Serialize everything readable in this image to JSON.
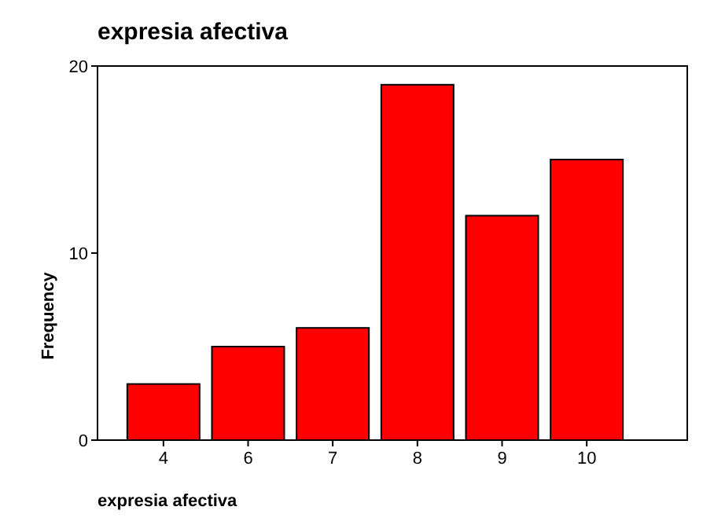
{
  "chart_data": {
    "type": "bar",
    "title": "expresia afectiva",
    "xlabel": "expresia afectiva",
    "ylabel": "Frequency",
    "categories": [
      "4",
      "6",
      "7",
      "8",
      "9",
      "10"
    ],
    "values": [
      3,
      5,
      6,
      19,
      12,
      15
    ],
    "color": "#ff0000",
    "ylim": [
      0,
      20
    ],
    "yticks": [
      0,
      10,
      20
    ],
    "grid": false
  }
}
